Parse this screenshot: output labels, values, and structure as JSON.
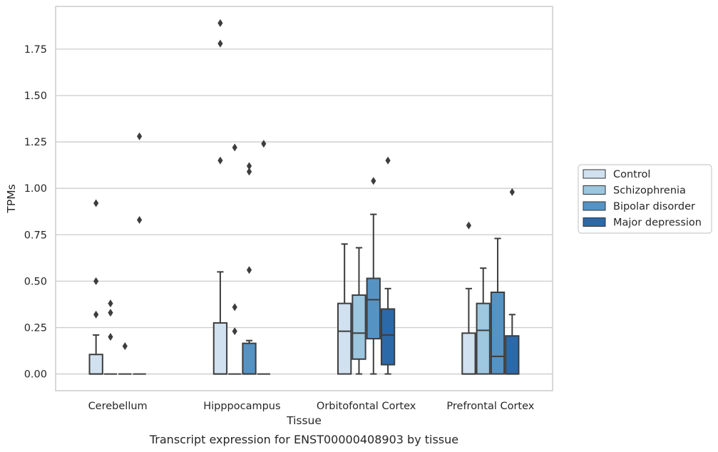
{
  "chart_data": {
    "type": "box",
    "xlabel": "Tissue",
    "ylabel": "TPMs",
    "caption": "Transcript expression for ENST00000408903 by tissue",
    "ylim": [
      -0.09,
      1.98
    ],
    "yticks": [
      0.0,
      0.25,
      0.5,
      0.75,
      1.0,
      1.25,
      1.5,
      1.75
    ],
    "ytick_labels": [
      "0.00",
      "0.25",
      "0.50",
      "0.75",
      "1.00",
      "1.25",
      "1.50",
      "1.75"
    ],
    "grid": "horizontal",
    "legend_position": "right",
    "categories": [
      "Cerebellum",
      "Hipppocampus",
      "Orbitofontal Cortex",
      "Prefrontal Cortex"
    ],
    "series": [
      {
        "name": "Control",
        "color": "#d1e1f0",
        "boxes": [
          {
            "q1": 0.0,
            "median": 0.0,
            "q3": 0.105,
            "whisker_low": 0.0,
            "whisker_high": 0.21,
            "outliers": [
              0.92,
              0.5,
              0.32
            ]
          },
          {
            "q1": 0.0,
            "median": 0.0,
            "q3": 0.275,
            "whisker_low": 0.0,
            "whisker_high": 0.55,
            "outliers": [
              1.89,
              1.78,
              1.15
            ]
          },
          {
            "q1": 0.0,
            "median": 0.23,
            "q3": 0.38,
            "whisker_low": 0.0,
            "whisker_high": 0.7,
            "outliers": []
          },
          {
            "q1": 0.0,
            "median": 0.0,
            "q3": 0.22,
            "whisker_low": 0.0,
            "whisker_high": 0.46,
            "outliers": [
              0.8
            ]
          }
        ]
      },
      {
        "name": "Schizophrenia",
        "color": "#9dc6df",
        "boxes": [
          {
            "q1": 0.0,
            "median": 0.0,
            "q3": 0.0,
            "whisker_low": 0.0,
            "whisker_high": 0.0,
            "outliers": [
              0.38,
              0.33,
              0.2
            ]
          },
          {
            "q1": 0.0,
            "median": 0.0,
            "q3": 0.0,
            "whisker_low": 0.0,
            "whisker_high": 0.0,
            "outliers": [
              1.22,
              0.36,
              0.23
            ]
          },
          {
            "q1": 0.08,
            "median": 0.22,
            "q3": 0.425,
            "whisker_low": 0.0,
            "whisker_high": 0.68,
            "outliers": []
          },
          {
            "q1": 0.0,
            "median": 0.235,
            "q3": 0.38,
            "whisker_low": 0.0,
            "whisker_high": 0.57,
            "outliers": []
          }
        ]
      },
      {
        "name": "Bipolar disorder",
        "color": "#5593c4",
        "boxes": [
          {
            "q1": 0.0,
            "median": 0.0,
            "q3": 0.0,
            "whisker_low": 0.0,
            "whisker_high": 0.0,
            "outliers": [
              0.15
            ]
          },
          {
            "q1": 0.0,
            "median": 0.0,
            "q3": 0.165,
            "whisker_low": 0.0,
            "whisker_high": 0.18,
            "outliers": [
              1.12,
              1.09,
              0.56
            ]
          },
          {
            "q1": 0.19,
            "median": 0.4,
            "q3": 0.515,
            "whisker_low": 0.0,
            "whisker_high": 0.86,
            "outliers": [
              1.04
            ]
          },
          {
            "q1": 0.0,
            "median": 0.095,
            "q3": 0.44,
            "whisker_low": 0.0,
            "whisker_high": 0.73,
            "outliers": []
          }
        ]
      },
      {
        "name": "Major depression",
        "color": "#2b69a8",
        "boxes": [
          {
            "q1": 0.0,
            "median": 0.0,
            "q3": 0.0,
            "whisker_low": 0.0,
            "whisker_high": 0.0,
            "outliers": [
              1.28,
              0.83
            ]
          },
          {
            "q1": 0.0,
            "median": 0.0,
            "q3": 0.0,
            "whisker_low": 0.0,
            "whisker_high": 0.0,
            "outliers": [
              1.24
            ]
          },
          {
            "q1": 0.05,
            "median": 0.21,
            "q3": 0.35,
            "whisker_low": 0.0,
            "whisker_high": 0.46,
            "outliers": [
              1.15
            ]
          },
          {
            "q1": 0.0,
            "median": 0.0,
            "q3": 0.205,
            "whisker_low": 0.0,
            "whisker_high": 0.32,
            "outliers": [
              0.98
            ]
          }
        ]
      }
    ]
  }
}
